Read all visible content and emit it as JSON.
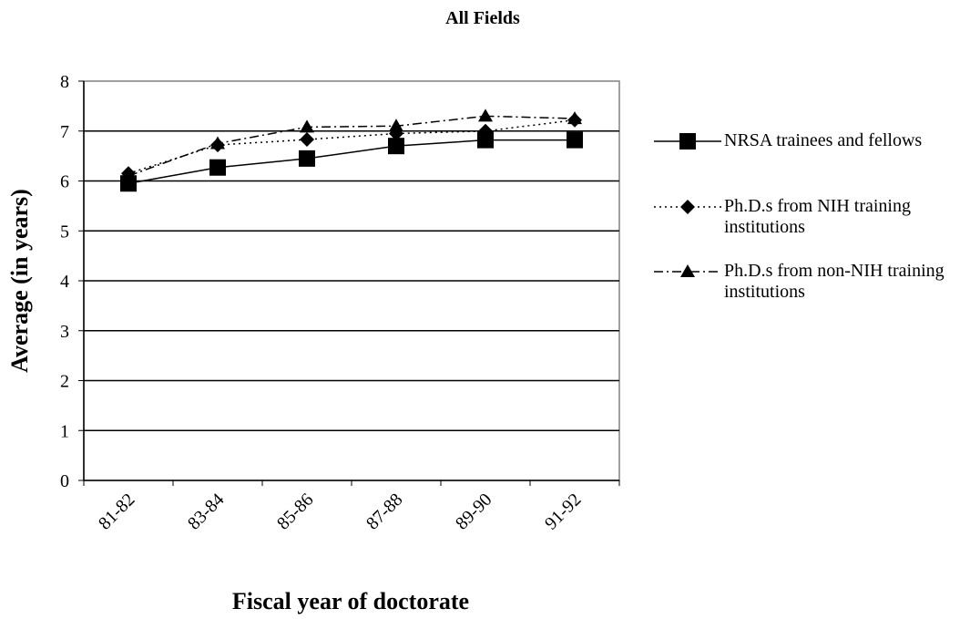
{
  "chart_data": {
    "type": "line",
    "title": "All Fields",
    "x_label": "Fiscal year of doctorate",
    "y_label": "Average (in years)",
    "categories": [
      "81-82",
      "83-84",
      "85-86",
      "87-88",
      "89-90",
      "91-92"
    ],
    "series": [
      {
        "name": "NRSA trainees and fellows",
        "color": "#000000",
        "linestyle": "solid",
        "marker": "square",
        "values": [
          5.95,
          6.27,
          6.45,
          6.7,
          6.82,
          6.82
        ]
      },
      {
        "name": "Ph.D.s from NIH training institutions",
        "color": "#000000",
        "linestyle": "dotted",
        "marker": "diamond",
        "values": [
          6.15,
          6.72,
          6.83,
          6.95,
          7.0,
          7.22
        ]
      },
      {
        "name": "Ph.D.s from non-NIH training institutions",
        "color": "#000000",
        "linestyle": "dashdot",
        "marker": "triangle",
        "values": [
          6.1,
          6.75,
          7.08,
          7.1,
          7.3,
          7.25
        ]
      }
    ],
    "ylim": [
      0,
      8
    ],
    "yticks": [
      0,
      1,
      2,
      3,
      4,
      5,
      6,
      7,
      8
    ],
    "grid": true,
    "legend": "right"
  }
}
